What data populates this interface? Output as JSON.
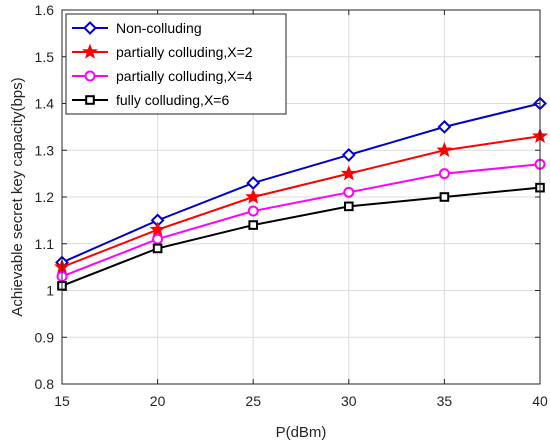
{
  "chart_data": {
    "type": "line",
    "title": "",
    "xlabel": "P(dBm)",
    "ylabel": "Achievable secret key capacity(bps)",
    "xlim": [
      15,
      40
    ],
    "ylim": [
      0.8,
      1.6
    ],
    "xticks": [
      15,
      20,
      25,
      30,
      35,
      40
    ],
    "yticks": [
      0.8,
      0.9,
      1.0,
      1.1,
      1.2,
      1.3,
      1.4,
      1.5,
      1.6
    ],
    "xtick_labels": [
      "15",
      "20",
      "25",
      "30",
      "35",
      "40"
    ],
    "ytick_labels": [
      "0.8",
      "0.9",
      "1",
      "1.1",
      "1.2",
      "1.3",
      "1.4",
      "1.5",
      "1.6"
    ],
    "grid": true,
    "legend_position": "top-left",
    "x": [
      15,
      20,
      25,
      30,
      35,
      40
    ],
    "series": [
      {
        "name": "Non-colluding",
        "color": "#0000cc",
        "marker": "diamond",
        "values": [
          1.06,
          1.15,
          1.23,
          1.29,
          1.35,
          1.4
        ]
      },
      {
        "name": "partially colluding,X=2",
        "color": "#ff0000",
        "marker": "star",
        "values": [
          1.05,
          1.13,
          1.2,
          1.25,
          1.3,
          1.33
        ]
      },
      {
        "name": "partially colluding,X=4",
        "color": "#ff00ff",
        "marker": "circle",
        "values": [
          1.03,
          1.11,
          1.17,
          1.21,
          1.25,
          1.27
        ]
      },
      {
        "name": "fully colluding,X=6",
        "color": "#000000",
        "marker": "square",
        "values": [
          1.01,
          1.09,
          1.14,
          1.18,
          1.2,
          1.22
        ]
      }
    ]
  }
}
